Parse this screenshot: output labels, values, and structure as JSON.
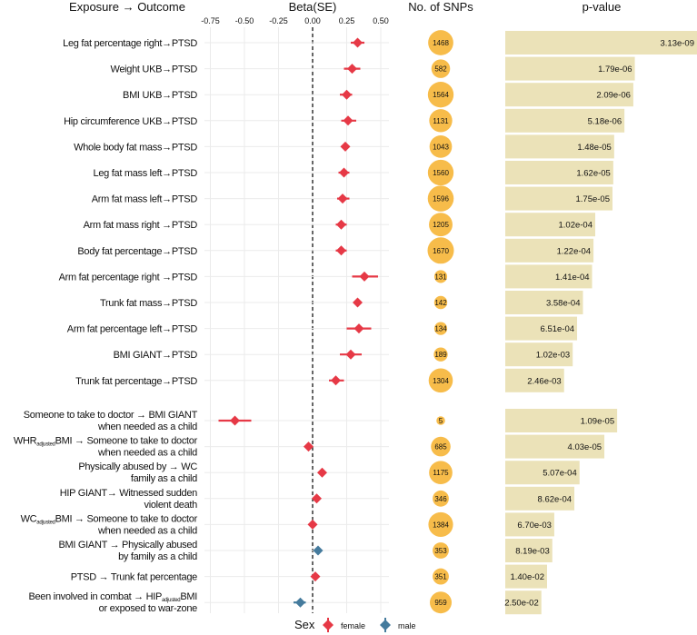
{
  "chart_data": {
    "type": "forest",
    "headers": {
      "label": "Exposure → Outcome",
      "beta": "Beta(SE)",
      "snps": "No. of SNPs",
      "pvalue": "p-value"
    },
    "x_ticks": [
      "-0.75",
      "-0.50",
      "-0.25",
      "0.00",
      "0.25",
      "0.50"
    ],
    "xlim": [
      -0.78,
      0.58
    ],
    "reference_line": 0,
    "colors": {
      "female": "#e63946",
      "male": "#457b9d",
      "snp_bubble": "#f7bc4a",
      "pbar": "#ebe2b8",
      "grid": "#ebebeb"
    },
    "legend": {
      "title": "Sex",
      "entries": [
        {
          "label": "female",
          "key": "female"
        },
        {
          "label": "male",
          "key": "male"
        }
      ],
      "placement": "bottom"
    },
    "rows": [
      {
        "lines": [
          "Leg fat percentage right→PTSD"
        ],
        "beta": 0.33,
        "ci": [
          0.28,
          0.38
        ],
        "sex": "female",
        "snps": "1468",
        "p": "3.13e-09",
        "pnum": 3.13e-09
      },
      {
        "lines": [
          "Weight UKB→PTSD"
        ],
        "beta": 0.29,
        "ci": [
          0.23,
          0.35
        ],
        "sex": "female",
        "snps": "582",
        "p": "1.79e-06",
        "pnum": 1.79e-06
      },
      {
        "lines": [
          "BMI UKB→PTSD"
        ],
        "beta": 0.25,
        "ci": [
          0.2,
          0.29
        ],
        "sex": "female",
        "snps": "1564",
        "p": "2.09e-06",
        "pnum": 2.09e-06
      },
      {
        "lines": [
          "Hip circumference UKB→PTSD"
        ],
        "beta": 0.26,
        "ci": [
          0.21,
          0.32
        ],
        "sex": "female",
        "snps": "1131",
        "p": "5.18e-06",
        "pnum": 5.18e-06
      },
      {
        "lines": [
          "Whole body fat mass→PTSD"
        ],
        "beta": 0.24,
        "ci": [
          0.21,
          0.27
        ],
        "sex": "female",
        "snps": "1043",
        "p": "1.48e-05",
        "pnum": 1.48e-05
      },
      {
        "lines": [
          "Leg fat mass left→PTSD"
        ],
        "beta": 0.23,
        "ci": [
          0.19,
          0.27
        ],
        "sex": "female",
        "snps": "1560",
        "p": "1.62e-05",
        "pnum": 1.62e-05
      },
      {
        "lines": [
          "Arm fat mass left→PTSD"
        ],
        "beta": 0.22,
        "ci": [
          0.18,
          0.27
        ],
        "sex": "female",
        "snps": "1596",
        "p": "1.75e-05",
        "pnum": 1.75e-05
      },
      {
        "lines": [
          "Arm fat mass right →PTSD"
        ],
        "beta": 0.21,
        "ci": [
          0.17,
          0.25
        ],
        "sex": "female",
        "snps": "1205",
        "p": "1.02e-04",
        "pnum": 0.000102
      },
      {
        "lines": [
          "Body fat percentage→PTSD"
        ],
        "beta": 0.21,
        "ci": [
          0.17,
          0.25
        ],
        "sex": "female",
        "snps": "1670",
        "p": "1.22e-04",
        "pnum": 0.000122
      },
      {
        "lines": [
          "Arm fat percentage right →PTSD"
        ],
        "beta": 0.38,
        "ci": [
          0.29,
          0.48
        ],
        "sex": "female",
        "snps": "131",
        "p": "1.41e-04",
        "pnum": 0.000141
      },
      {
        "lines": [
          "Trunk fat mass→PTSD"
        ],
        "beta": 0.33,
        "ci": [
          0.31,
          0.36
        ],
        "sex": "female",
        "snps": "142",
        "p": "3.58e-04",
        "pnum": 0.000358
      },
      {
        "lines": [
          "Arm fat percentage left→PTSD"
        ],
        "beta": 0.34,
        "ci": [
          0.25,
          0.43
        ],
        "sex": "female",
        "snps": "134",
        "p": "6.51e-04",
        "pnum": 0.000651
      },
      {
        "lines": [
          "BMI GIANT→PTSD"
        ],
        "beta": 0.28,
        "ci": [
          0.2,
          0.36
        ],
        "sex": "female",
        "snps": "189",
        "p": "1.02e-03",
        "pnum": 0.00102
      },
      {
        "lines": [
          "Trunk fat percentage→PTSD"
        ],
        "beta": 0.17,
        "ci": [
          0.12,
          0.23
        ],
        "sex": "female",
        "snps": "1304",
        "p": "2.46e-03",
        "pnum": 0.00246
      },
      {
        "lines": [
          "Someone to take to doctor → BMI GIANT",
          "when needed as a child"
        ],
        "beta": -0.57,
        "ci": [
          -0.69,
          -0.45
        ],
        "sex": "female",
        "snps": "5",
        "p": "1.09e-05",
        "pnum": 1.09e-05
      },
      {
        "lines": [
          "WHR_{adjusted}BMI → Someone to take to doctor",
          "when needed as a child"
        ],
        "beta": -0.03,
        "ci": [
          -0.05,
          -0.01
        ],
        "sex": "female",
        "snps": "685",
        "p": "4.03e-05",
        "pnum": 4.03e-05
      },
      {
        "lines": [
          "Physically abused by →  WC",
          "family as a child"
        ],
        "beta": 0.07,
        "ci": [
          0.05,
          0.09
        ],
        "sex": "female",
        "snps": "1175",
        "p": "5.07e-04",
        "pnum": 0.000507
      },
      {
        "lines": [
          "HIP GIANT→  Witnessed sudden",
          "violent death"
        ],
        "beta": 0.03,
        "ci": [
          0.01,
          0.05
        ],
        "sex": "female",
        "snps": "346",
        "p": "8.62e-04",
        "pnum": 0.000862
      },
      {
        "lines": [
          "WC_{adjusted}BMI →  Someone to take to doctor",
          "when needed as a child"
        ],
        "beta": 0.0,
        "ci": [
          -0.02,
          0.02
        ],
        "sex": "female",
        "snps": "1384",
        "p": "6.70e-03",
        "pnum": 0.0067
      },
      {
        "lines": [
          "BMI GIANT →  Physically abused",
          "by family as a child"
        ],
        "beta": 0.04,
        "ci": [
          0.02,
          0.06
        ],
        "sex": "male",
        "snps": "353",
        "p": "8.19e-03",
        "pnum": 0.00819
      },
      {
        "lines": [
          "PTSD →  Trunk fat percentage"
        ],
        "beta": 0.02,
        "ci": [
          0.0,
          0.04
        ],
        "sex": "female",
        "snps": "351",
        "p": "1.40e-02",
        "pnum": 0.014
      },
      {
        "lines": [
          "Been involved in combat → HIP_{adjusted}BMI",
          "or exposed to war-zone"
        ],
        "beta": -0.09,
        "ci": [
          -0.14,
          -0.05
        ],
        "sex": "male",
        "snps": "959",
        "p": "2.50e-02",
        "pnum": 0.025
      }
    ]
  }
}
